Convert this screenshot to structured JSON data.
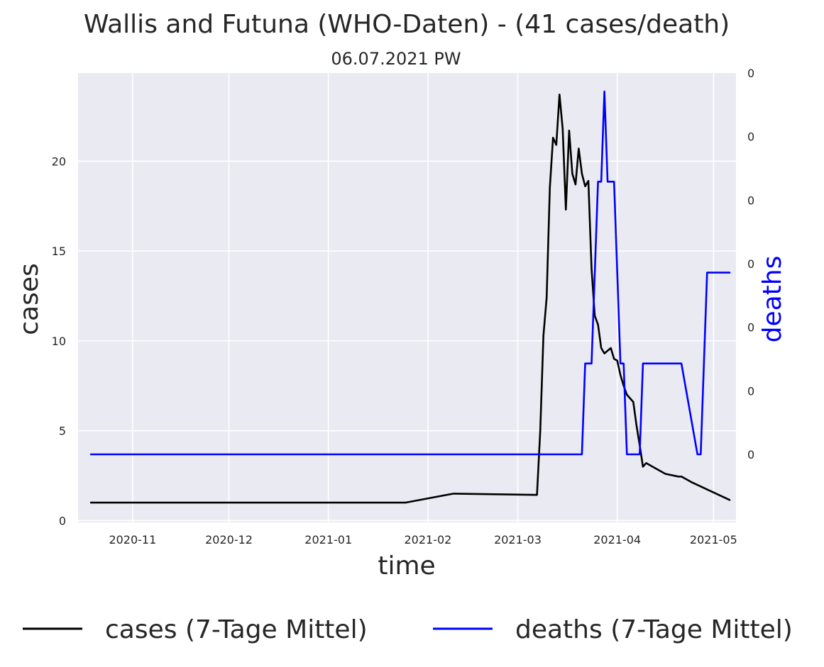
{
  "chart_data": {
    "type": "line",
    "title": "Wallis and Futuna (WHO-Daten) - (41 cases/death)",
    "subtitle": "06.07.2021 PW",
    "xlabel": "time",
    "ylabel": "cases",
    "ylabel_right": "deaths",
    "grid": true,
    "legend_placement": "bottom",
    "x_ticks": [
      "2020-11",
      "2020-12",
      "2021-01",
      "2021-02",
      "2021-03",
      "2021-04",
      "2021-05"
    ],
    "x_tick_dates": [
      "2020-11-01",
      "2020-12-01",
      "2021-01-01",
      "2021-02-01",
      "2021-03-01",
      "2021-04-01",
      "2021-05-01"
    ],
    "xlim": [
      "2020-10-15",
      "2021-05-08"
    ],
    "y_ticks": [
      0,
      5,
      10,
      15,
      20
    ],
    "ylim": [
      -0.1,
      24.9
    ],
    "y_right_ticks": [
      "0",
      "0",
      "0",
      "0",
      "0",
      "0",
      "0"
    ],
    "y_right_ylim": [
      -0.107,
      0.6
    ],
    "colors": {
      "cases": "#000000",
      "deaths": "#0000ff",
      "background": "#eaeaf2"
    },
    "series": [
      {
        "name": "cases (7-Tage Mittel)",
        "axis": "left",
        "color": "#000000",
        "points": [
          [
            "2020-10-19",
            1.0
          ],
          [
            "2021-01-25",
            1.0
          ],
          [
            "2021-02-09",
            1.5
          ],
          [
            "2021-03-07",
            1.43
          ],
          [
            "2021-03-08",
            5.0
          ],
          [
            "2021-03-09",
            10.3
          ],
          [
            "2021-03-10",
            12.4
          ],
          [
            "2021-03-11",
            18.5
          ],
          [
            "2021-03-12",
            21.3
          ],
          [
            "2021-03-13",
            20.9
          ],
          [
            "2021-03-14",
            23.7
          ],
          [
            "2021-03-15",
            21.8
          ],
          [
            "2021-03-16",
            17.3
          ],
          [
            "2021-03-17",
            21.7
          ],
          [
            "2021-03-18",
            19.3
          ],
          [
            "2021-03-19",
            18.7
          ],
          [
            "2021-03-20",
            20.7
          ],
          [
            "2021-03-21",
            19.3
          ],
          [
            "2021-03-22",
            18.6
          ],
          [
            "2021-03-23",
            18.9
          ],
          [
            "2021-03-24",
            14.0
          ],
          [
            "2021-03-25",
            11.4
          ],
          [
            "2021-03-26",
            10.9
          ],
          [
            "2021-03-27",
            9.6
          ],
          [
            "2021-03-28",
            9.3
          ],
          [
            "2021-03-30",
            9.6
          ],
          [
            "2021-03-31",
            9.0
          ],
          [
            "2021-04-01",
            8.9
          ],
          [
            "2021-04-02",
            8.1
          ],
          [
            "2021-04-03",
            7.5
          ],
          [
            "2021-04-04",
            7.0
          ],
          [
            "2021-04-06",
            6.6
          ],
          [
            "2021-04-07",
            5.3
          ],
          [
            "2021-04-08",
            4.2
          ],
          [
            "2021-04-09",
            3.0
          ],
          [
            "2021-04-10",
            3.2
          ],
          [
            "2021-04-12",
            3.0
          ],
          [
            "2021-04-16",
            2.6
          ],
          [
            "2021-04-20",
            2.45
          ],
          [
            "2021-04-21",
            2.45
          ],
          [
            "2021-04-24",
            2.15
          ],
          [
            "2021-05-06",
            1.15
          ]
        ]
      },
      {
        "name": "deaths (7-Tage Mittel)",
        "axis": "right",
        "color": "#0000ff",
        "points": [
          [
            "2020-10-19",
            0.0
          ],
          [
            "2021-03-21",
            0.0
          ],
          [
            "2021-03-22",
            0.143
          ],
          [
            "2021-03-24",
            0.143
          ],
          [
            "2021-03-26",
            0.429
          ],
          [
            "2021-03-27",
            0.429
          ],
          [
            "2021-03-28",
            0.571
          ],
          [
            "2021-03-29",
            0.429
          ],
          [
            "2021-03-31",
            0.429
          ],
          [
            "2021-04-02",
            0.143
          ],
          [
            "2021-04-03",
            0.143
          ],
          [
            "2021-04-04",
            0.0
          ],
          [
            "2021-04-08",
            0.0
          ],
          [
            "2021-04-09",
            0.143
          ],
          [
            "2021-04-21",
            0.143
          ],
          [
            "2021-04-26",
            0.0
          ],
          [
            "2021-04-27",
            0.0
          ],
          [
            "2021-04-29",
            0.286
          ],
          [
            "2021-05-06",
            0.286
          ]
        ]
      }
    ]
  }
}
